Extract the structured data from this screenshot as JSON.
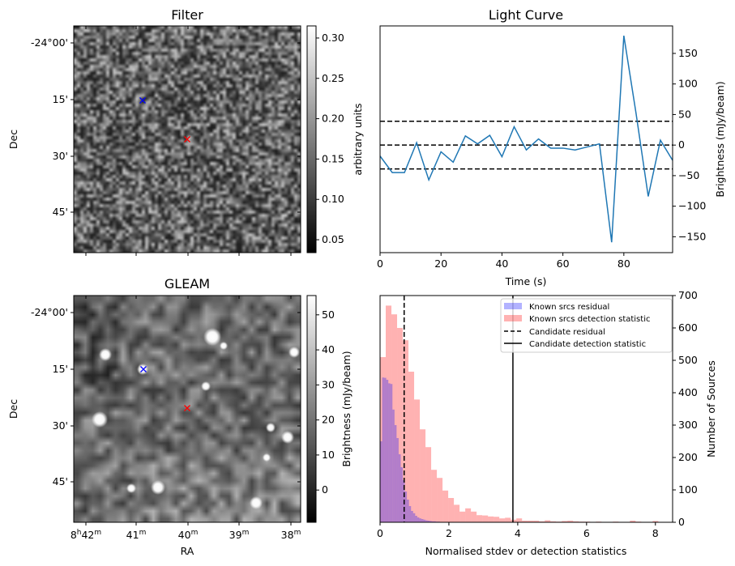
{
  "chart_data": [
    {
      "type": "heatmap",
      "title": "Filter",
      "xlabel": "",
      "ylabel": "Dec",
      "y_tick_labels": [
        "-24°00'",
        "15'",
        "30'",
        "45'"
      ],
      "x_tick_count": 5,
      "colorbar": {
        "label": "arbitrary units",
        "range": [
          0.034,
          0.315
        ],
        "ticks": [
          0.05,
          0.1,
          0.15,
          0.2,
          0.25,
          0.3
        ],
        "tick_labels": [
          "0.05",
          "0.10",
          "0.15",
          "0.20",
          "0.25",
          "0.30"
        ],
        "colormap": "gray"
      },
      "markers": [
        {
          "symbol": "x",
          "color": "#0000ff"
        },
        {
          "symbol": "x",
          "color": "#ff0000"
        }
      ]
    },
    {
      "type": "line",
      "title": "Light Curve",
      "xlabel": "Time (s)",
      "ylabel": "Brightness (mJy/beam)",
      "x": [
        0,
        4,
        8,
        12,
        16,
        20,
        24,
        28,
        32,
        36,
        40,
        44,
        48,
        52,
        56,
        60,
        64,
        68,
        72,
        76,
        80,
        84,
        88,
        92,
        96
      ],
      "y": [
        -18,
        -45,
        -45,
        4,
        -57,
        -11,
        -28,
        15,
        2,
        16,
        -19,
        30,
        -8,
        10,
        -5,
        -5,
        -8,
        -3,
        2,
        -159,
        179,
        52,
        -84,
        8,
        -25
      ],
      "color": "#1f77b4",
      "xlim": [
        0,
        96
      ],
      "ylim": [
        -176,
        195
      ],
      "x_ticks": [
        0,
        20,
        40,
        60,
        80
      ],
      "y_ticks": [
        -150,
        -100,
        -50,
        0,
        50,
        100,
        150
      ],
      "y_axis_side": "right",
      "hlines": [
        {
          "y": 39,
          "style": "dashed"
        },
        {
          "y": 0,
          "style": "dashed"
        },
        {
          "y": -39,
          "style": "dashed"
        }
      ]
    },
    {
      "type": "heatmap",
      "title": "GLEAM",
      "xlabel": "RA",
      "ylabel": "Dec",
      "y_tick_labels": [
        "-24°00'",
        "15'",
        "30'",
        "45'"
      ],
      "x_tick_labels": [
        [
          "8",
          "h",
          "42",
          "m"
        ],
        [
          "41",
          "m"
        ],
        [
          "40",
          "m"
        ],
        [
          "39",
          "m"
        ],
        [
          "38",
          "m"
        ]
      ],
      "colorbar": {
        "label": "Brightness (mJy/beam)",
        "range": [
          -9.2,
          55.5
        ],
        "ticks": [
          0,
          10,
          20,
          30,
          40,
          50
        ],
        "tick_labels": [
          "0",
          "10",
          "20",
          "30",
          "40",
          "50"
        ],
        "colormap": "gray"
      },
      "markers": [
        {
          "symbol": "x",
          "color": "#0000ff"
        },
        {
          "symbol": "x",
          "color": "#ff0000"
        }
      ]
    },
    {
      "type": "bar",
      "title": "",
      "xlabel": "Normalised stdev or detection statistics",
      "ylabel": "Number of Sources",
      "y_axis_side": "right",
      "xlim": [
        0,
        8.5
      ],
      "ylim": [
        0,
        700
      ],
      "x_ticks": [
        0,
        2,
        4,
        6,
        8
      ],
      "y_ticks": [
        0,
        100,
        200,
        300,
        400,
        500,
        600,
        700
      ],
      "series": [
        {
          "name": "Known srcs residual",
          "color": "#0000ff",
          "alpha": 0.3,
          "bin_start": 0,
          "bin_width": 0.06,
          "values": [
            250,
            447,
            446,
            440,
            429,
            427,
            348,
            300,
            260,
            210,
            170,
            130,
            95,
            70,
            50,
            35,
            28,
            20,
            15,
            12,
            10,
            8,
            6,
            5,
            4,
            3,
            3,
            2,
            2,
            1
          ]
        },
        {
          "name": "Known srcs detection statistic",
          "color": "#ff0000",
          "alpha": 0.3,
          "bin_start": 0,
          "bin_width": 0.165,
          "values": [
            510,
            669,
            642,
            600,
            562,
            465,
            379,
            287,
            232,
            162,
            137,
            98,
            75,
            54,
            33,
            43,
            33,
            22,
            21,
            18,
            17,
            12,
            14,
            8,
            12,
            5,
            5,
            5,
            3,
            6,
            3,
            2,
            4,
            5,
            3,
            2,
            2,
            1,
            2,
            1,
            1,
            2,
            1,
            1,
            5,
            2,
            1,
            1,
            4
          ]
        }
      ],
      "vlines": [
        {
          "name": "Candidate residual",
          "x": 0.7,
          "style": "dashed"
        },
        {
          "name": "Candidate detection statistic",
          "x": 3.86,
          "style": "solid"
        }
      ],
      "legend": {
        "placement": "top-right"
      }
    }
  ]
}
